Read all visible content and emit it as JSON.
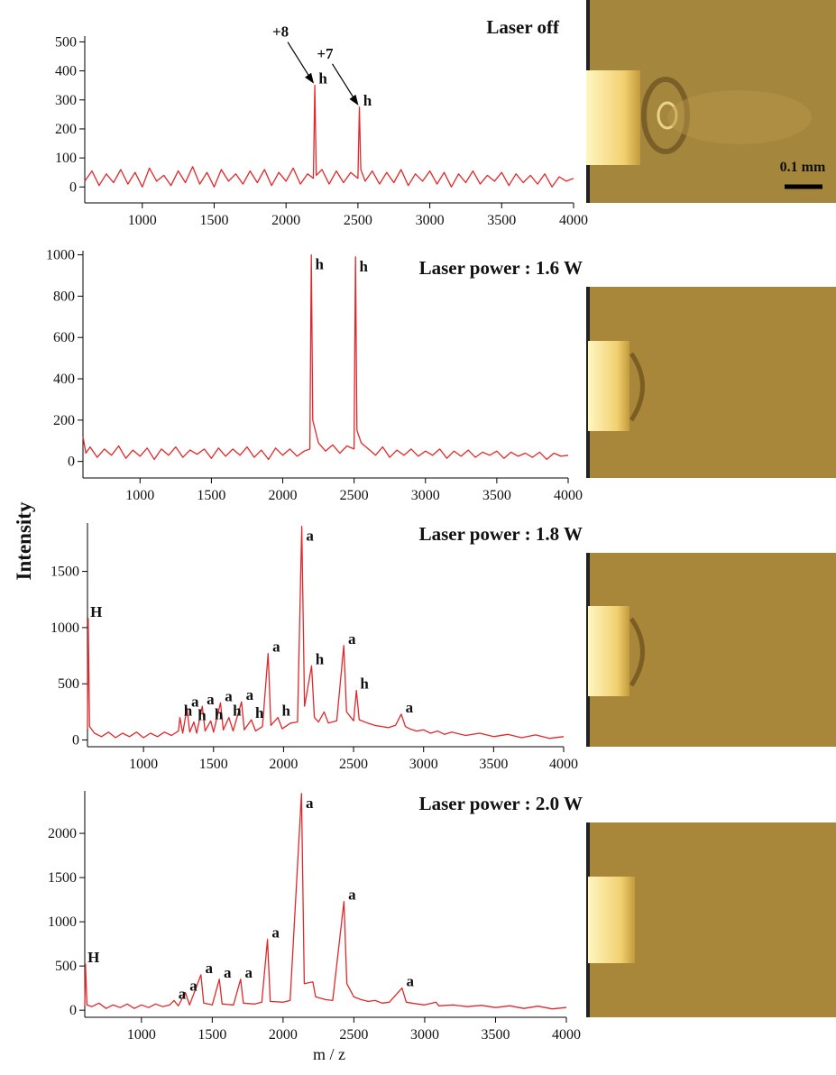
{
  "ylabel": "Intensity",
  "xlabel": "m / z",
  "scale_bar": "0.1 mm",
  "chart_data": [
    {
      "type": "line",
      "title": "Laser off",
      "color": "#e0282c",
      "xlim": [
        600,
        4000
      ],
      "ylim": [
        -55,
        520
      ],
      "xticks": [
        1000,
        1500,
        2000,
        2500,
        3000,
        3500,
        4000
      ],
      "yticks": [
        0,
        100,
        200,
        300,
        400,
        500
      ],
      "x": [
        600,
        650,
        700,
        750,
        800,
        850,
        900,
        950,
        1000,
        1050,
        1100,
        1150,
        1200,
        1250,
        1300,
        1350,
        1400,
        1450,
        1500,
        1550,
        1600,
        1650,
        1700,
        1750,
        1800,
        1850,
        1900,
        1950,
        2000,
        2050,
        2100,
        2150,
        2190,
        2200,
        2210,
        2250,
        2300,
        2350,
        2400,
        2450,
        2500,
        2510,
        2520,
        2550,
        2600,
        2650,
        2700,
        2750,
        2800,
        2850,
        2900,
        2950,
        3000,
        3050,
        3100,
        3150,
        3200,
        3250,
        3300,
        3350,
        3400,
        3450,
        3500,
        3550,
        3600,
        3650,
        3700,
        3750,
        3800,
        3850,
        3900,
        3950,
        4000
      ],
      "values": [
        20,
        55,
        5,
        45,
        15,
        60,
        10,
        50,
        0,
        65,
        20,
        40,
        5,
        55,
        15,
        70,
        10,
        50,
        0,
        60,
        20,
        45,
        10,
        55,
        15,
        60,
        5,
        50,
        20,
        65,
        10,
        45,
        30,
        350,
        40,
        60,
        10,
        55,
        15,
        50,
        30,
        275,
        60,
        20,
        55,
        10,
        50,
        15,
        60,
        5,
        45,
        20,
        55,
        10,
        50,
        0,
        45,
        15,
        55,
        10,
        40,
        20,
        50,
        5,
        45,
        15,
        40,
        10,
        45,
        0,
        35,
        20,
        30
      ],
      "annotations": [
        {
          "text": "h",
          "x": 2200,
          "y": 350
        },
        {
          "text": "h",
          "x": 2510,
          "y": 275
        },
        {
          "text": "+8",
          "x": 2200,
          "y": 350,
          "arrow": true
        },
        {
          "text": "+7",
          "x": 2510,
          "y": 275,
          "arrow": true
        }
      ]
    },
    {
      "type": "line",
      "title": "Laser power : 1.6 W",
      "color": "#e0282c",
      "xlim": [
        600,
        4000
      ],
      "ylim": [
        -80,
        1020
      ],
      "xticks": [
        1000,
        1500,
        2000,
        2500,
        3000,
        3500,
        4000
      ],
      "yticks": [
        0,
        200,
        400,
        600,
        800,
        1000
      ],
      "x": [
        600,
        620,
        650,
        700,
        750,
        800,
        850,
        900,
        950,
        1000,
        1050,
        1100,
        1150,
        1200,
        1250,
        1300,
        1350,
        1400,
        1450,
        1500,
        1550,
        1600,
        1650,
        1700,
        1750,
        1800,
        1850,
        1900,
        1950,
        2000,
        2050,
        2100,
        2150,
        2190,
        2200,
        2210,
        2250,
        2300,
        2350,
        2400,
        2450,
        2500,
        2510,
        2520,
        2550,
        2600,
        2650,
        2700,
        2750,
        2800,
        2850,
        2900,
        2950,
        3000,
        3050,
        3100,
        3150,
        3200,
        3250,
        3300,
        3350,
        3400,
        3450,
        3500,
        3550,
        3600,
        3650,
        3700,
        3750,
        3800,
        3850,
        3900,
        3950,
        4000
      ],
      "values": [
        120,
        40,
        70,
        20,
        60,
        30,
        75,
        15,
        55,
        25,
        65,
        10,
        60,
        30,
        70,
        20,
        55,
        35,
        60,
        15,
        65,
        25,
        60,
        30,
        70,
        20,
        55,
        10,
        65,
        30,
        60,
        25,
        50,
        60,
        1000,
        200,
        90,
        50,
        80,
        40,
        75,
        60,
        990,
        150,
        90,
        60,
        30,
        70,
        20,
        55,
        30,
        60,
        25,
        50,
        30,
        60,
        15,
        50,
        25,
        55,
        20,
        45,
        30,
        50,
        15,
        45,
        25,
        40,
        20,
        45,
        10,
        40,
        25,
        30
      ],
      "annotations": [
        {
          "text": "h",
          "x": 2200,
          "y": 1000
        },
        {
          "text": "h",
          "x": 2510,
          "y": 990
        }
      ]
    },
    {
      "type": "line",
      "title": "Laser power : 1.8 W",
      "color": "#e0282c",
      "xlim": [
        600,
        4000
      ],
      "ylim": [
        -60,
        1930
      ],
      "xticks": [
        1000,
        1500,
        2000,
        2500,
        3000,
        3500,
        4000
      ],
      "yticks": [
        0,
        500,
        1000,
        1500
      ],
      "x": [
        600,
        605,
        615,
        650,
        700,
        750,
        800,
        850,
        900,
        950,
        1000,
        1050,
        1100,
        1150,
        1200,
        1250,
        1260,
        1280,
        1310,
        1330,
        1360,
        1380,
        1420,
        1440,
        1480,
        1500,
        1550,
        1570,
        1610,
        1640,
        1700,
        1720,
        1770,
        1800,
        1850,
        1890,
        1910,
        1960,
        1990,
        2050,
        2100,
        2130,
        2150,
        2200,
        2220,
        2250,
        2290,
        2320,
        2380,
        2430,
        2450,
        2500,
        2520,
        2540,
        2600,
        2650,
        2700,
        2750,
        2800,
        2840,
        2870,
        2900,
        2950,
        3000,
        3050,
        3100,
        3150,
        3200,
        3300,
        3400,
        3500,
        3600,
        3700,
        3800,
        3900,
        4000
      ],
      "values": [
        100,
        1080,
        120,
        60,
        30,
        70,
        20,
        60,
        30,
        70,
        20,
        60,
        30,
        70,
        40,
        80,
        200,
        60,
        280,
        70,
        160,
        60,
        300,
        80,
        170,
        70,
        330,
        90,
        200,
        80,
        340,
        90,
        180,
        80,
        120,
        770,
        130,
        200,
        100,
        150,
        160,
        1900,
        300,
        660,
        200,
        160,
        250,
        150,
        170,
        840,
        250,
        170,
        440,
        180,
        150,
        130,
        120,
        110,
        130,
        230,
        120,
        100,
        80,
        90,
        60,
        80,
        50,
        70,
        40,
        60,
        30,
        50,
        20,
        45,
        15,
        30
      ],
      "annotations": [
        {
          "text": "H",
          "x": 605,
          "y": 1080
        },
        {
          "text": "h",
          "x": 1260,
          "y": 200
        },
        {
          "text": "a",
          "x": 1310,
          "y": 280
        },
        {
          "text": "h",
          "x": 1360,
          "y": 160
        },
        {
          "text": "a",
          "x": 1420,
          "y": 300
        },
        {
          "text": "h",
          "x": 1480,
          "y": 170
        },
        {
          "text": "a",
          "x": 1550,
          "y": 330
        },
        {
          "text": "h",
          "x": 1610,
          "y": 200
        },
        {
          "text": "a",
          "x": 1700,
          "y": 340
        },
        {
          "text": "h",
          "x": 1770,
          "y": 180
        },
        {
          "text": "a",
          "x": 1890,
          "y": 770
        },
        {
          "text": "h",
          "x": 1960,
          "y": 200
        },
        {
          "text": "a",
          "x": 2130,
          "y": 1900
        },
        {
          "text": "h",
          "x": 2200,
          "y": 660
        },
        {
          "text": "a",
          "x": 2430,
          "y": 840
        },
        {
          "text": "h",
          "x": 2520,
          "y": 440
        },
        {
          "text": "a",
          "x": 2840,
          "y": 230
        }
      ]
    },
    {
      "type": "line",
      "title": "Laser power : 2.0 W",
      "color": "#e0282c",
      "xlim": [
        600,
        4000
      ],
      "ylim": [
        -80,
        2480
      ],
      "xticks": [
        1000,
        1500,
        2000,
        2500,
        3000,
        3500,
        4000
      ],
      "yticks": [
        0,
        500,
        1000,
        1500,
        2000
      ],
      "x": [
        600,
        605,
        615,
        650,
        700,
        750,
        800,
        850,
        900,
        950,
        1000,
        1050,
        1100,
        1150,
        1200,
        1230,
        1260,
        1310,
        1340,
        1420,
        1440,
        1500,
        1550,
        1570,
        1650,
        1700,
        1720,
        1800,
        1850,
        1890,
        1910,
        2000,
        2050,
        2130,
        2150,
        2210,
        2230,
        2300,
        2350,
        2430,
        2450,
        2500,
        2550,
        2600,
        2650,
        2700,
        2750,
        2840,
        2870,
        2950,
        3000,
        3080,
        3100,
        3200,
        3300,
        3400,
        3500,
        3600,
        3700,
        3800,
        3900,
        4000
      ],
      "values": [
        50,
        520,
        60,
        40,
        80,
        20,
        60,
        30,
        70,
        20,
        60,
        30,
        70,
        40,
        60,
        110,
        50,
        200,
        60,
        400,
        80,
        60,
        350,
        70,
        60,
        350,
        80,
        70,
        90,
        800,
        100,
        90,
        110,
        2450,
        300,
        320,
        150,
        120,
        110,
        1230,
        300,
        150,
        120,
        100,
        110,
        80,
        90,
        250,
        90,
        70,
        60,
        90,
        50,
        60,
        40,
        55,
        30,
        50,
        20,
        45,
        15,
        30
      ],
      "annotations": [
        {
          "text": "H",
          "x": 605,
          "y": 520
        },
        {
          "text": "a",
          "x": 1230,
          "y": 110
        },
        {
          "text": "a",
          "x": 1310,
          "y": 200
        },
        {
          "text": "a",
          "x": 1420,
          "y": 400
        },
        {
          "text": "a",
          "x": 1550,
          "y": 350
        },
        {
          "text": "a",
          "x": 1700,
          "y": 350
        },
        {
          "text": "a",
          "x": 1890,
          "y": 800
        },
        {
          "text": "a",
          "x": 2130,
          "y": 2450
        },
        {
          "text": "a",
          "x": 2430,
          "y": 1230
        },
        {
          "text": "a",
          "x": 2840,
          "y": 250
        }
      ]
    }
  ]
}
